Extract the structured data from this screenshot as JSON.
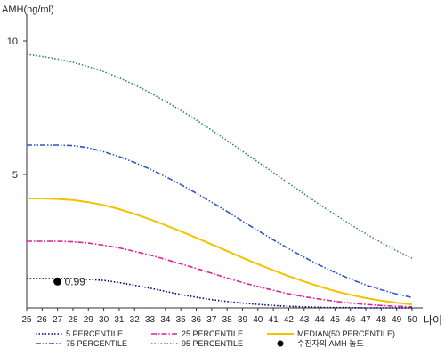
{
  "chart_data": {
    "type": "line",
    "ylabel": "AMH(ng/ml)",
    "xlabel": "나이",
    "xlim": [
      25,
      50
    ],
    "ylim": [
      0,
      11
    ],
    "grid": false,
    "legend_position": "bottom",
    "x": [
      25,
      26,
      27,
      28,
      29,
      30,
      31,
      32,
      33,
      34,
      35,
      36,
      37,
      38,
      39,
      40,
      41,
      42,
      43,
      44,
      45,
      46,
      47,
      48,
      49,
      50
    ],
    "x_tick_labels": [
      "25",
      "26",
      "27",
      "28",
      "29",
      "30",
      "31",
      "32",
      "33",
      "34",
      "35",
      "36",
      "37",
      "38",
      "39",
      "40",
      "41",
      "42",
      "43",
      "44",
      "45",
      "46",
      "47",
      "48",
      "49",
      "50"
    ],
    "y_ticks": [
      5,
      10
    ],
    "y_tick_labels": [
      "5",
      "10"
    ],
    "series": [
      {
        "name": "5 PERCENTILE",
        "color": "#000080",
        "dash": "dotted",
        "values": [
          1.1,
          1.1,
          1.1,
          1.1,
          1.07,
          1.03,
          0.95,
          0.85,
          0.74,
          0.62,
          0.5,
          0.4,
          0.31,
          0.24,
          0.18,
          0.13,
          0.09,
          0.06,
          0.04,
          0.02,
          0.01,
          0.01,
          0.0,
          0.0,
          0.0,
          0.0
        ]
      },
      {
        "name": "25 PERCENTILE",
        "color": "#e0209a",
        "dash": "dashdot",
        "values": [
          2.5,
          2.5,
          2.5,
          2.48,
          2.43,
          2.35,
          2.25,
          2.12,
          1.98,
          1.82,
          1.65,
          1.48,
          1.3,
          1.12,
          0.95,
          0.8,
          0.66,
          0.53,
          0.42,
          0.33,
          0.25,
          0.18,
          0.13,
          0.09,
          0.06,
          0.04
        ]
      },
      {
        "name": "MEDIAN(50 PERCENTILE)",
        "color": "#f2c200",
        "dash": "solid",
        "values": [
          4.1,
          4.1,
          4.08,
          4.04,
          3.96,
          3.85,
          3.7,
          3.52,
          3.32,
          3.1,
          2.87,
          2.63,
          2.38,
          2.13,
          1.88,
          1.64,
          1.41,
          1.19,
          0.99,
          0.8,
          0.63,
          0.49,
          0.37,
          0.27,
          0.19,
          0.13
        ]
      },
      {
        "name": "75 PERCENTILE",
        "color": "#2f55c8",
        "dash": "dashdotdot",
        "values": [
          6.1,
          6.1,
          6.1,
          6.08,
          6.0,
          5.85,
          5.67,
          5.45,
          5.2,
          4.92,
          4.62,
          4.3,
          3.96,
          3.61,
          3.25,
          2.9,
          2.55,
          2.22,
          1.9,
          1.6,
          1.33,
          1.08,
          0.86,
          0.68,
          0.52,
          0.39
        ]
      },
      {
        "name": "95 PERCENTILE",
        "color": "#2e8b57",
        "dash": "dotted",
        "values": [
          9.5,
          9.42,
          9.32,
          9.2,
          9.04,
          8.85,
          8.62,
          8.36,
          8.06,
          7.74,
          7.4,
          7.04,
          6.66,
          6.27,
          5.87,
          5.47,
          5.07,
          4.67,
          4.27,
          3.87,
          3.5,
          3.13,
          2.78,
          2.45,
          2.14,
          1.86
        ]
      }
    ],
    "marker": {
      "name": "수진자의 AMH 농도",
      "x": 27,
      "y": 0.99,
      "label": "0.99",
      "color": "#000000"
    },
    "legend_order": [
      "5 PERCENTILE",
      "25 PERCENTILE",
      "MEDIAN(50 PERCENTILE)",
      "75 PERCENTILE",
      "95 PERCENTILE",
      "수진자의 AMH 농도"
    ]
  }
}
